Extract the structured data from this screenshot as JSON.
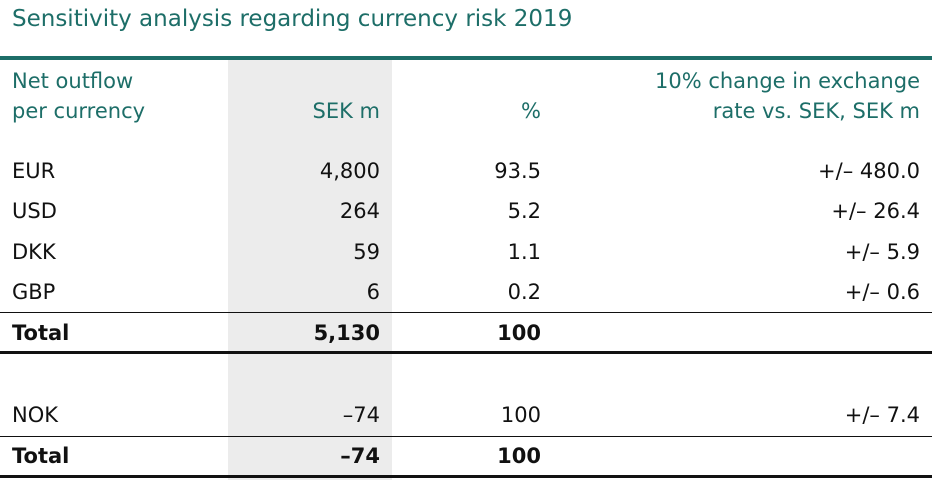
{
  "title": "Sensitivity analysis regarding currency risk 2019",
  "table": {
    "header": [
      "Net outflow\nper currency",
      "SEK m",
      "%",
      "10% change in exchange\nrate vs. SEK, SEK m"
    ],
    "rows": [
      [
        "EUR",
        "4,800",
        "93.5",
        "+/– 480.0"
      ],
      [
        "USD",
        "264",
        "5.2",
        "+/– 26.4"
      ],
      [
        "DKK",
        "59",
        "1.1",
        "+/– 5.9"
      ],
      [
        "GBP",
        "6",
        "0.2",
        "+/– 0.6"
      ],
      [
        "Total",
        "5,130",
        "100"
      ],
      [
        "NOK",
        "–74",
        "100",
        "+/– 7.4"
      ],
      [
        "Total",
        "–74",
        "100"
      ]
    ]
  }
}
